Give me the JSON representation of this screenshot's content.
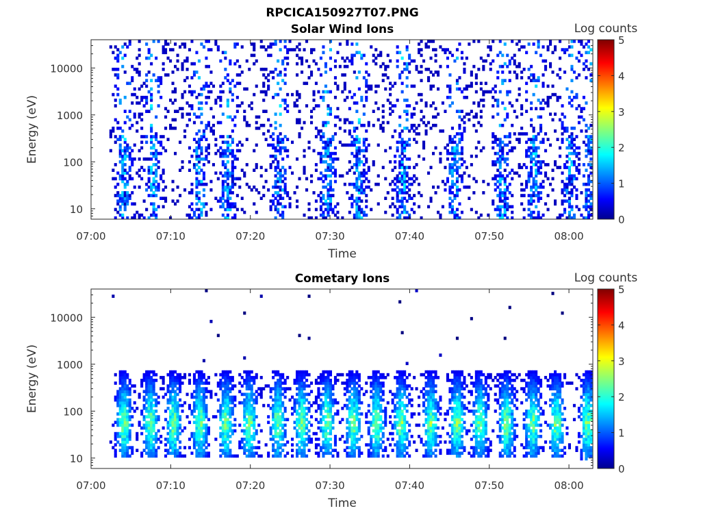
{
  "figure_title": "RPCICA150927T07.PNG",
  "chart_data": [
    {
      "type": "heatmap",
      "title": "Solar Wind Ions",
      "xlabel": "Time",
      "ylabel": "Energy (eV)",
      "x_ticks": [
        "07:00",
        "07:10",
        "07:20",
        "07:30",
        "07:40",
        "07:50",
        "08:00"
      ],
      "xlim": [
        "07:00",
        "08:03"
      ],
      "y_ticks": [
        "10",
        "100",
        "1000",
        "10000"
      ],
      "ylim": [
        6,
        40000
      ],
      "y_scale": "log",
      "colorbar": {
        "label": "Log counts",
        "ticks": [
          "0",
          "1",
          "2",
          "3",
          "4",
          "5"
        ],
        "range": [
          0,
          5
        ],
        "colormap": "jet"
      },
      "bursts_time_min": [
        4.0,
        7.5,
        13.5,
        17.0,
        23.5,
        29.5,
        33.5,
        39.0,
        45.5,
        51.5,
        55.5,
        60.0,
        62.5
      ],
      "peak_log_counts_approx": 2.0,
      "data_start_min": 2.3,
      "data_end_min": 62.8
    },
    {
      "type": "heatmap",
      "title": "Cometary Ions",
      "xlabel": "Time",
      "ylabel": "Energy (eV)",
      "x_ticks": [
        "07:00",
        "07:10",
        "07:20",
        "07:30",
        "07:40",
        "07:50",
        "08:00"
      ],
      "xlim": [
        "07:00",
        "08:03"
      ],
      "y_ticks": [
        "10",
        "100",
        "1000",
        "10000"
      ],
      "ylim": [
        6,
        40000
      ],
      "y_scale": "log",
      "colorbar": {
        "label": "Log counts",
        "ticks": [
          "0",
          "1",
          "2",
          "3",
          "4",
          "5"
        ],
        "range": [
          0,
          5
        ],
        "colormap": "jet"
      },
      "bursts_time_min": [
        4.0,
        7.3,
        10.2,
        13.5,
        16.8,
        19.7,
        23.3,
        26.3,
        29.5,
        32.8,
        35.7,
        38.8,
        42.5,
        45.8,
        48.7,
        52.0,
        55.3,
        58.3,
        62.2
      ],
      "burst_energy_range_eV": [
        10,
        600
      ],
      "peak_log_counts_approx": 3.0,
      "data_start_min": 2.3,
      "data_end_min": 62.8
    }
  ]
}
